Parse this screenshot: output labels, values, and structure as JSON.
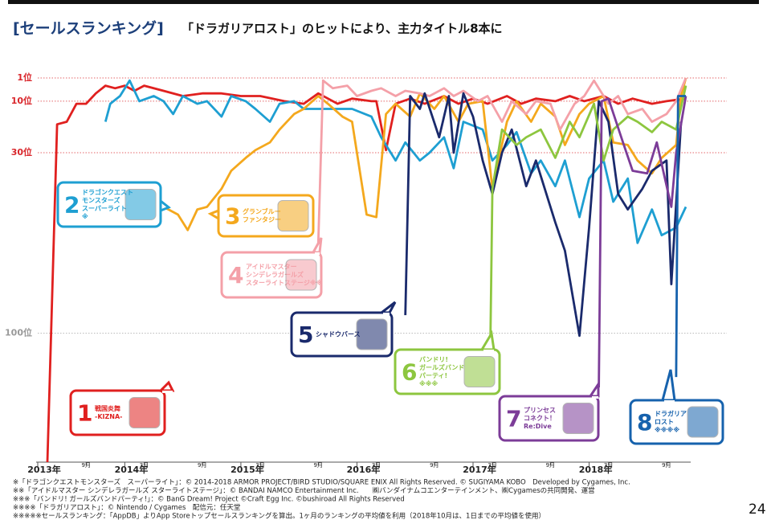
{
  "chart_data": {
    "type": "line",
    "title": "[セールスランキング]",
    "subtitle": "「ドラガリアロスト」のヒットにより、主力タイトル8本に",
    "xlim": [
      0,
      67.5
    ],
    "ylim": [
      1,
      150
    ],
    "y_inverted": true,
    "grid": true,
    "xticks": [
      {
        "value": 0,
        "label": "2013年"
      },
      {
        "value": 5,
        "label": "9月"
      },
      {
        "value": 9,
        "label": "2014年"
      },
      {
        "value": 11,
        "label": "3月"
      },
      {
        "value": 17,
        "label": "9月"
      },
      {
        "value": 21,
        "label": "2015年"
      },
      {
        "value": 23,
        "label": "3月"
      },
      {
        "value": 29,
        "label": "9月"
      },
      {
        "value": 33,
        "label": "2016年"
      },
      {
        "value": 35,
        "label": "3月"
      },
      {
        "value": 41,
        "label": "9月"
      },
      {
        "value": 45,
        "label": "2017年"
      },
      {
        "value": 47,
        "label": "3月"
      },
      {
        "value": 53,
        "label": "9月"
      },
      {
        "value": 57,
        "label": "2018年"
      },
      {
        "value": 59,
        "label": "3月"
      },
      {
        "value": 65,
        "label": "9月"
      }
    ],
    "yticks": [
      {
        "value": 1,
        "label": "1位"
      },
      {
        "value": 10,
        "label": "10位"
      },
      {
        "value": 30,
        "label": "30位"
      },
      {
        "value": 100,
        "label": "100位"
      }
    ],
    "ytick_colors": [
      "#d9262b",
      "#d9262b",
      "#d9262b",
      "#999999"
    ],
    "series": [
      {
        "color": "#e0201f",
        "callout": {
          "number": "1",
          "lines": [
            "戦国炎舞",
            "-KIZNA-"
          ]
        },
        "x": [
          1,
          2,
          3,
          4,
          5,
          6,
          7,
          8,
          9,
          10,
          11,
          13,
          15,
          17,
          19,
          21,
          23,
          25.5,
          27.5,
          29,
          31,
          32.5,
          34.5,
          35,
          36,
          37,
          38.5,
          40,
          42,
          43.5,
          45,
          46.5,
          48.5,
          50,
          51.5,
          53.5,
          55,
          56.5,
          58.5,
          60,
          61.5,
          63.5,
          65,
          67
        ],
        "values": [
          150,
          19,
          18,
          11,
          11,
          7,
          4,
          5,
          4,
          6,
          4,
          6,
          8,
          7,
          7,
          8,
          8,
          10,
          11,
          7,
          11,
          9,
          10,
          10,
          29,
          11,
          9,
          11,
          8,
          11,
          9,
          11,
          8,
          11,
          9,
          10,
          8,
          10,
          8,
          11,
          9,
          11,
          10,
          9
        ]
      },
      {
        "color": "#1e9fd2",
        "callout": {
          "number": "2",
          "lines": [
            "ドラゴンクエスト",
            "モンスターズ",
            "スーパーライト",
            "※"
          ]
        },
        "x": [
          7,
          7.5,
          8.5,
          9.5,
          10.5,
          12,
          13,
          14,
          15,
          16.5,
          17.5,
          19,
          20,
          21.5,
          22.5,
          24,
          25,
          26.5,
          27.5,
          29,
          31,
          32.5,
          34.5,
          35.5,
          37,
          38,
          39.5,
          40.5,
          42,
          43,
          44,
          46,
          47,
          48.5,
          49.5,
          51,
          52,
          53.5,
          54.5,
          56,
          57,
          58.5,
          59.5,
          61,
          62,
          63.5,
          64.5,
          66,
          67
        ],
        "values": [
          18,
          11,
          8,
          2,
          10,
          8,
          10,
          15,
          8,
          11,
          10,
          16,
          8,
          10,
          13,
          18,
          11,
          10,
          13,
          13,
          13,
          13,
          16,
          24,
          33,
          26,
          33,
          30,
          24,
          36,
          18,
          21,
          33,
          27,
          22,
          38,
          33,
          43,
          33,
          55,
          40,
          33,
          49,
          40,
          65,
          52,
          62,
          59,
          51
        ]
      },
      {
        "color": "#f4a81d",
        "callout": {
          "number": "3",
          "lines": [
            "グランブルー",
            "ファンタジー"
          ]
        },
        "x": [
          13,
          14.5,
          15.5,
          16.5,
          17.5,
          19,
          20,
          21.5,
          22.5,
          24,
          25,
          26.5,
          27.5,
          29,
          30,
          31.5,
          32.5,
          34,
          35,
          36,
          37,
          38.5,
          39.5,
          41,
          42,
          43.5,
          44.5,
          46,
          47,
          48.5,
          49.5,
          51,
          52,
          53.5,
          54.5,
          56,
          57,
          58.5,
          59.5,
          61,
          62,
          63.5,
          64.5,
          66,
          66.5,
          67
        ],
        "values": [
          51,
          54,
          60,
          52,
          51,
          44,
          37,
          32,
          29,
          26,
          21,
          15,
          13,
          8,
          11,
          16,
          18,
          54,
          55,
          15,
          11,
          16,
          7,
          13,
          8,
          18,
          11,
          10,
          44,
          18,
          10,
          18,
          11,
          16,
          27,
          15,
          11,
          8,
          26,
          27,
          33,
          38,
          32,
          27,
          8,
          1
        ]
      },
      {
        "color": "#f4a0a8",
        "callout": {
          "number": "4",
          "lines": [
            "アイドルマスター",
            "シンデレラガールズ",
            "スターライトステージ※※"
          ]
        },
        "x": [
          29,
          29.5,
          30.5,
          32,
          33,
          34.5,
          35.5,
          37,
          38,
          39.5,
          40.5,
          42,
          43,
          44,
          45.5,
          46.5,
          48,
          49,
          50.5,
          51.5,
          53,
          54,
          55.5,
          56.5,
          57.5,
          59,
          60,
          61,
          62.5,
          63.5,
          65,
          66,
          67
        ],
        "values": [
          65,
          2,
          5,
          4,
          8,
          6,
          5,
          8,
          6,
          7,
          8,
          5,
          8,
          6,
          10,
          8,
          18,
          10,
          15,
          10,
          11,
          21,
          11,
          8,
          2,
          11,
          8,
          15,
          13,
          18,
          15,
          10,
          1
        ]
      },
      {
        "color": "#1a2a6c",
        "callout": {
          "number": "5",
          "lines": [
            "シャドウバース"
          ]
        },
        "x": [
          38,
          38.5,
          39.5,
          40,
          41.5,
          42.5,
          43,
          44,
          45,
          46,
          47,
          48,
          49,
          50.5,
          51.5,
          53.5,
          54.5,
          56,
          57,
          58,
          59,
          60,
          61,
          62.5,
          63.5,
          65,
          65.5,
          66.5
        ],
        "values": [
          93,
          8,
          13,
          7,
          24,
          8,
          30,
          7,
          16,
          33,
          46,
          30,
          21,
          43,
          33,
          57,
          68,
          101,
          59,
          10,
          18,
          46,
          52,
          44,
          37,
          33,
          81,
          18
        ]
      },
      {
        "color": "#8dc63f",
        "callout": {
          "number": "6",
          "lines": [
            "バンドリ!",
            "ガールズバンド",
            "パーティ!",
            "※※※"
          ]
        },
        "x": [
          46.8,
          47,
          48,
          49.5,
          50.5,
          52,
          53.5,
          55,
          56,
          57.5,
          58.5,
          59.5,
          61,
          62,
          63.5,
          64.5,
          66,
          67
        ],
        "values": [
          101,
          44,
          21,
          27,
          24,
          21,
          32,
          18,
          24,
          11,
          33,
          21,
          16,
          18,
          22,
          18,
          21,
          4
        ]
      },
      {
        "color": "#7c3c98",
        "callout": {
          "number": "7",
          "lines": [
            "プリンセス",
            "コネクト！",
            "Re:Dive"
          ]
        },
        "x": [
          58,
          58.3,
          59,
          60.5,
          61.5,
          63,
          64,
          65.5,
          66,
          67
        ],
        "values": [
          121,
          10,
          9,
          26,
          37,
          38,
          26,
          51,
          30,
          8
        ]
      },
      {
        "color": "#1662ad",
        "callout": {
          "number": "8",
          "lines": [
            "ドラガリア",
            "ロスト",
            "※※※※"
          ]
        },
        "x": [
          66,
          66.2,
          67
        ],
        "values": [
          117,
          8,
          8
        ]
      }
    ]
  },
  "footnotes": [
    "※「ドラゴンクエストモンスターズ　スーパーライト」：© 2014-2018 ARMOR PROJECT/BIRD STUDIO/SQUARE ENIX All Rights Reserved. © SUGIYAMA KOBO　Developed by Cygames, Inc.",
    "※※「アイドルマスター シンデレラガールズ スターライトステージ」：© BANDAI NAMCO Entertainment Inc.　　㈱バンダイナムコエンターテインメント、㈱Cygamesの共同開発、運営",
    "※※※「バンドリ! ガールズバンドパーティ!」：© BanG Dream! Project ©Craft Egg Inc. ©bushiroad All Rights Reserved",
    "※※※※「ドラガリアロスト」：© Nintendo / Cygames　配信元：任天堂",
    "※※※※※セールスランキング：「AppDB」よりApp Storeトップセールスランキングを算出。1ヶ月のランキングの平均値を利用（2018年10月は、1日までの平均値を使用）"
  ],
  "page_number": "24"
}
